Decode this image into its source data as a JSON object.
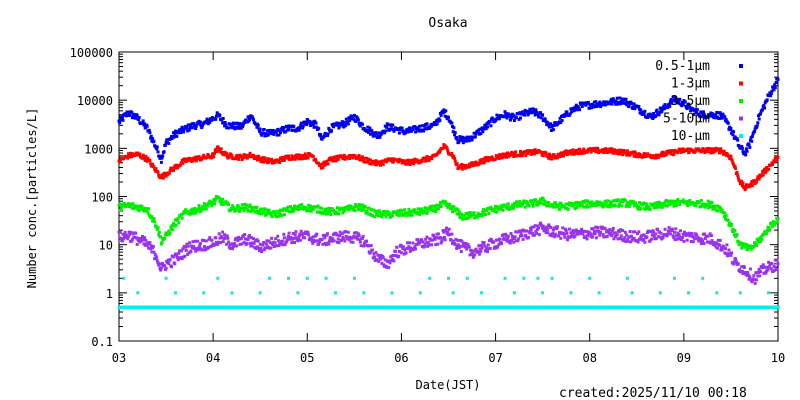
{
  "chart_data": {
    "type": "scatter",
    "title": "Osaka",
    "xlabel": "Date(JST)",
    "ylabel": "Number conc.[particles/L]",
    "yscale": "log",
    "ylim": [
      0.1,
      100000
    ],
    "xlim": [
      3,
      10
    ],
    "x_tick_labels": [
      "03",
      "04",
      "05",
      "06",
      "07",
      "08",
      "09",
      "10"
    ],
    "x_tick_values": [
      3,
      4,
      5,
      6,
      7,
      8,
      9,
      10
    ],
    "y_tick_labels": [
      "0.1",
      "1",
      "10",
      "100",
      "1000",
      "10000",
      "100000"
    ],
    "y_tick_values": [
      0.1,
      1,
      10,
      100,
      1000,
      10000,
      100000
    ],
    "legend_position": "top-right",
    "series": [
      {
        "name": "0.5-1μm",
        "color": "#0000ee",
        "points": [
          [
            3.0,
            3500
          ],
          [
            3.1,
            5500
          ],
          [
            3.2,
            4200
          ],
          [
            3.3,
            2600
          ],
          [
            3.4,
            1000
          ],
          [
            3.45,
            600
          ],
          [
            3.5,
            1300
          ],
          [
            3.6,
            2000
          ],
          [
            3.7,
            2500
          ],
          [
            3.8,
            3000
          ],
          [
            3.9,
            3200
          ],
          [
            4.0,
            4200
          ],
          [
            4.05,
            4800
          ],
          [
            4.15,
            3000
          ],
          [
            4.3,
            2800
          ],
          [
            4.4,
            4800
          ],
          [
            4.5,
            2200
          ],
          [
            4.6,
            2000
          ],
          [
            4.7,
            2200
          ],
          [
            4.8,
            2600
          ],
          [
            4.9,
            2600
          ],
          [
            5.0,
            3600
          ],
          [
            5.1,
            3000
          ],
          [
            5.15,
            1500
          ],
          [
            5.25,
            2600
          ],
          [
            5.4,
            3300
          ],
          [
            5.5,
            4500
          ],
          [
            5.6,
            2800
          ],
          [
            5.75,
            1800
          ],
          [
            5.85,
            2800
          ],
          [
            5.95,
            2500
          ],
          [
            6.05,
            2200
          ],
          [
            6.2,
            2600
          ],
          [
            6.35,
            3000
          ],
          [
            6.45,
            5800
          ],
          [
            6.5,
            4500
          ],
          [
            6.6,
            1500
          ],
          [
            6.7,
            1500
          ],
          [
            6.8,
            2000
          ],
          [
            6.9,
            2800
          ],
          [
            7.0,
            4200
          ],
          [
            7.1,
            5000
          ],
          [
            7.2,
            4200
          ],
          [
            7.3,
            5200
          ],
          [
            7.4,
            5800
          ],
          [
            7.5,
            4500
          ],
          [
            7.6,
            2600
          ],
          [
            7.7,
            4000
          ],
          [
            7.8,
            6000
          ],
          [
            7.9,
            7500
          ],
          [
            8.0,
            8000
          ],
          [
            8.2,
            9000
          ],
          [
            8.35,
            10000
          ],
          [
            8.5,
            7000
          ],
          [
            8.65,
            4500
          ],
          [
            8.8,
            7000
          ],
          [
            8.9,
            10500
          ],
          [
            9.0,
            8500
          ],
          [
            9.1,
            6000
          ],
          [
            9.2,
            5000
          ],
          [
            9.3,
            5000
          ],
          [
            9.4,
            4800
          ],
          [
            9.5,
            2500
          ],
          [
            9.6,
            1000
          ],
          [
            9.65,
            800
          ],
          [
            9.7,
            1200
          ],
          [
            9.8,
            4500
          ],
          [
            9.9,
            12000
          ],
          [
            10.0,
            27000
          ]
        ]
      },
      {
        "name": "1-3μm",
        "color": "#ff0000",
        "points": [
          [
            3.0,
            550
          ],
          [
            3.1,
            700
          ],
          [
            3.2,
            750
          ],
          [
            3.3,
            600
          ],
          [
            3.45,
            250
          ],
          [
            3.55,
            350
          ],
          [
            3.7,
            550
          ],
          [
            3.85,
            620
          ],
          [
            4.0,
            700
          ],
          [
            4.05,
            1000
          ],
          [
            4.15,
            700
          ],
          [
            4.3,
            650
          ],
          [
            4.4,
            720
          ],
          [
            4.5,
            600
          ],
          [
            4.65,
            520
          ],
          [
            4.8,
            650
          ],
          [
            4.95,
            680
          ],
          [
            5.05,
            720
          ],
          [
            5.15,
            420
          ],
          [
            5.25,
            580
          ],
          [
            5.4,
            650
          ],
          [
            5.5,
            700
          ],
          [
            5.6,
            580
          ],
          [
            5.75,
            480
          ],
          [
            5.9,
            580
          ],
          [
            6.05,
            500
          ],
          [
            6.2,
            560
          ],
          [
            6.35,
            650
          ],
          [
            6.45,
            1100
          ],
          [
            6.55,
            700
          ],
          [
            6.6,
            400
          ],
          [
            6.75,
            450
          ],
          [
            6.9,
            580
          ],
          [
            7.0,
            650
          ],
          [
            7.15,
            750
          ],
          [
            7.3,
            780
          ],
          [
            7.45,
            850
          ],
          [
            7.6,
            650
          ],
          [
            7.75,
            800
          ],
          [
            7.9,
            880
          ],
          [
            8.05,
            900
          ],
          [
            8.25,
            880
          ],
          [
            8.4,
            800
          ],
          [
            8.55,
            720
          ],
          [
            8.7,
            700
          ],
          [
            8.85,
            800
          ],
          [
            9.0,
            900
          ],
          [
            9.2,
            900
          ],
          [
            9.4,
            900
          ],
          [
            9.5,
            650
          ],
          [
            9.6,
            200
          ],
          [
            9.65,
            150
          ],
          [
            9.75,
            200
          ],
          [
            9.85,
            320
          ],
          [
            9.95,
            520
          ],
          [
            10.0,
            650
          ]
        ]
      },
      {
        "name": "3-5μm",
        "color": "#00ee00",
        "points": [
          [
            3.0,
            60
          ],
          [
            3.1,
            65
          ],
          [
            3.2,
            60
          ],
          [
            3.3,
            55
          ],
          [
            3.4,
            25
          ],
          [
            3.45,
            12
          ],
          [
            3.5,
            15
          ],
          [
            3.6,
            28
          ],
          [
            3.7,
            45
          ],
          [
            3.85,
            55
          ],
          [
            4.0,
            75
          ],
          [
            4.05,
            90
          ],
          [
            4.2,
            55
          ],
          [
            4.35,
            60
          ],
          [
            4.5,
            50
          ],
          [
            4.65,
            42
          ],
          [
            4.8,
            52
          ],
          [
            4.95,
            60
          ],
          [
            5.1,
            55
          ],
          [
            5.25,
            48
          ],
          [
            5.4,
            52
          ],
          [
            5.55,
            62
          ],
          [
            5.7,
            45
          ],
          [
            5.85,
            42
          ],
          [
            6.0,
            45
          ],
          [
            6.2,
            48
          ],
          [
            6.35,
            55
          ],
          [
            6.45,
            70
          ],
          [
            6.55,
            55
          ],
          [
            6.65,
            38
          ],
          [
            6.8,
            42
          ],
          [
            6.95,
            52
          ],
          [
            7.1,
            60
          ],
          [
            7.25,
            68
          ],
          [
            7.4,
            72
          ],
          [
            7.5,
            80
          ],
          [
            7.6,
            65
          ],
          [
            7.75,
            62
          ],
          [
            7.9,
            68
          ],
          [
            8.05,
            72
          ],
          [
            8.2,
            70
          ],
          [
            8.35,
            75
          ],
          [
            8.5,
            65
          ],
          [
            8.65,
            60
          ],
          [
            8.8,
            70
          ],
          [
            8.95,
            75
          ],
          [
            9.1,
            72
          ],
          [
            9.25,
            70
          ],
          [
            9.4,
            55
          ],
          [
            9.5,
            25
          ],
          [
            9.6,
            10
          ],
          [
            9.7,
            8
          ],
          [
            9.8,
            12
          ],
          [
            9.9,
            22
          ],
          [
            10.0,
            35
          ]
        ]
      },
      {
        "name": "5-10μm",
        "color": "#9933ee",
        "points": [
          [
            3.0,
            14
          ],
          [
            3.1,
            16
          ],
          [
            3.2,
            13
          ],
          [
            3.3,
            10
          ],
          [
            3.4,
            6
          ],
          [
            3.45,
            3
          ],
          [
            3.5,
            4
          ],
          [
            3.6,
            5
          ],
          [
            3.75,
            9
          ],
          [
            3.9,
            10
          ],
          [
            4.0,
            11
          ],
          [
            4.1,
            14
          ],
          [
            4.2,
            10
          ],
          [
            4.35,
            13
          ],
          [
            4.5,
            9
          ],
          [
            4.65,
            11
          ],
          [
            4.8,
            14
          ],
          [
            5.0,
            15
          ],
          [
            5.15,
            12
          ],
          [
            5.3,
            14
          ],
          [
            5.45,
            15
          ],
          [
            5.6,
            12
          ],
          [
            5.75,
            5
          ],
          [
            5.85,
            4
          ],
          [
            5.95,
            7
          ],
          [
            6.1,
            9
          ],
          [
            6.25,
            11
          ],
          [
            6.4,
            13
          ],
          [
            6.5,
            18
          ],
          [
            6.6,
            10
          ],
          [
            6.75,
            7
          ],
          [
            6.9,
            9
          ],
          [
            7.05,
            12
          ],
          [
            7.2,
            14
          ],
          [
            7.35,
            18
          ],
          [
            7.5,
            22
          ],
          [
            7.65,
            18
          ],
          [
            7.8,
            16
          ],
          [
            7.95,
            17
          ],
          [
            8.1,
            18
          ],
          [
            8.25,
            17
          ],
          [
            8.4,
            15
          ],
          [
            8.55,
            14
          ],
          [
            8.7,
            16
          ],
          [
            8.85,
            18
          ],
          [
            9.0,
            15
          ],
          [
            9.15,
            14
          ],
          [
            9.3,
            13
          ],
          [
            9.45,
            8
          ],
          [
            9.55,
            4
          ],
          [
            9.65,
            3
          ],
          [
            9.75,
            2
          ],
          [
            9.85,
            3
          ],
          [
            10.0,
            4
          ]
        ]
      },
      {
        "name": "10-μm",
        "color": "#00eeee",
        "points": [
          [
            3.05,
            2
          ],
          [
            3.5,
            2
          ],
          [
            4.05,
            2
          ],
          [
            4.6,
            2
          ],
          [
            4.8,
            2
          ],
          [
            5.0,
            2
          ],
          [
            5.2,
            2
          ],
          [
            5.5,
            2
          ],
          [
            6.3,
            2
          ],
          [
            6.5,
            2
          ],
          [
            6.7,
            2
          ],
          [
            7.1,
            2
          ],
          [
            7.3,
            2
          ],
          [
            7.45,
            2
          ],
          [
            7.6,
            2
          ],
          [
            8.0,
            2
          ],
          [
            8.4,
            2
          ],
          [
            8.9,
            2
          ],
          [
            9.2,
            2
          ],
          [
            3.2,
            1
          ],
          [
            3.6,
            1
          ],
          [
            3.9,
            1
          ],
          [
            4.2,
            1
          ],
          [
            4.5,
            1
          ],
          [
            4.9,
            1
          ],
          [
            5.3,
            1
          ],
          [
            5.6,
            1
          ],
          [
            5.9,
            1
          ],
          [
            6.2,
            1
          ],
          [
            6.55,
            1
          ],
          [
            6.85,
            1
          ],
          [
            7.2,
            1
          ],
          [
            7.5,
            1
          ],
          [
            7.8,
            1
          ],
          [
            8.1,
            1
          ],
          [
            8.45,
            1
          ],
          [
            8.75,
            1
          ],
          [
            9.05,
            1
          ],
          [
            9.35,
            1
          ],
          [
            9.6,
            1
          ],
          [
            9.9,
            1
          ]
        ]
      }
    ],
    "baseline_points": {
      "series": "10-μm",
      "value": 0.5,
      "x_start": 3,
      "x_end": 10
    }
  },
  "footer": {
    "created": "created:2025/11/10 00:18"
  }
}
